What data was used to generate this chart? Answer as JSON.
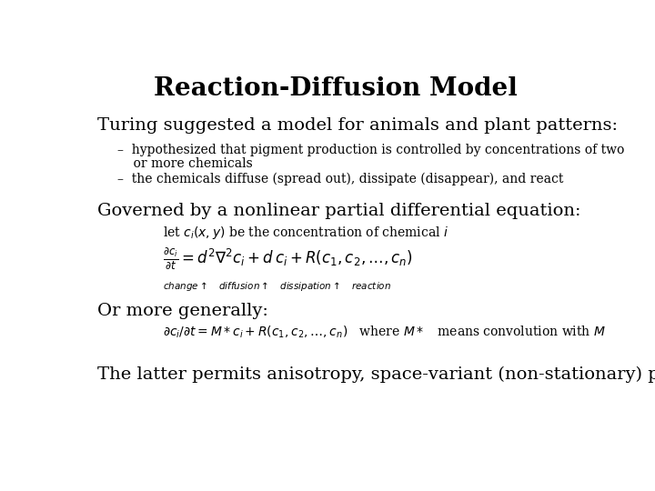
{
  "title": "Reaction-Diffusion Model",
  "title_fontsize": 20,
  "title_fontweight": "bold",
  "background_color": "#ffffff",
  "text_color": "#000000",
  "body_fontsize": 14,
  "small_fontsize": 10,
  "tiny_fontsize": 8,
  "line1": "Turing suggested a model for animals and plant patterns:",
  "bullet1a": "–  hypothesized that pigment production is controlled by concentrations of two",
  "bullet1b": "    or more chemicals",
  "bullet2": "–  the chemicals diffuse (spread out), dissipate (disappear), and react",
  "line2": "Governed by a nonlinear partial differential equation:",
  "line3": "Or more generally:",
  "line4": "The latter permits anisotropy, space-variant (non-stationary) patterns."
}
